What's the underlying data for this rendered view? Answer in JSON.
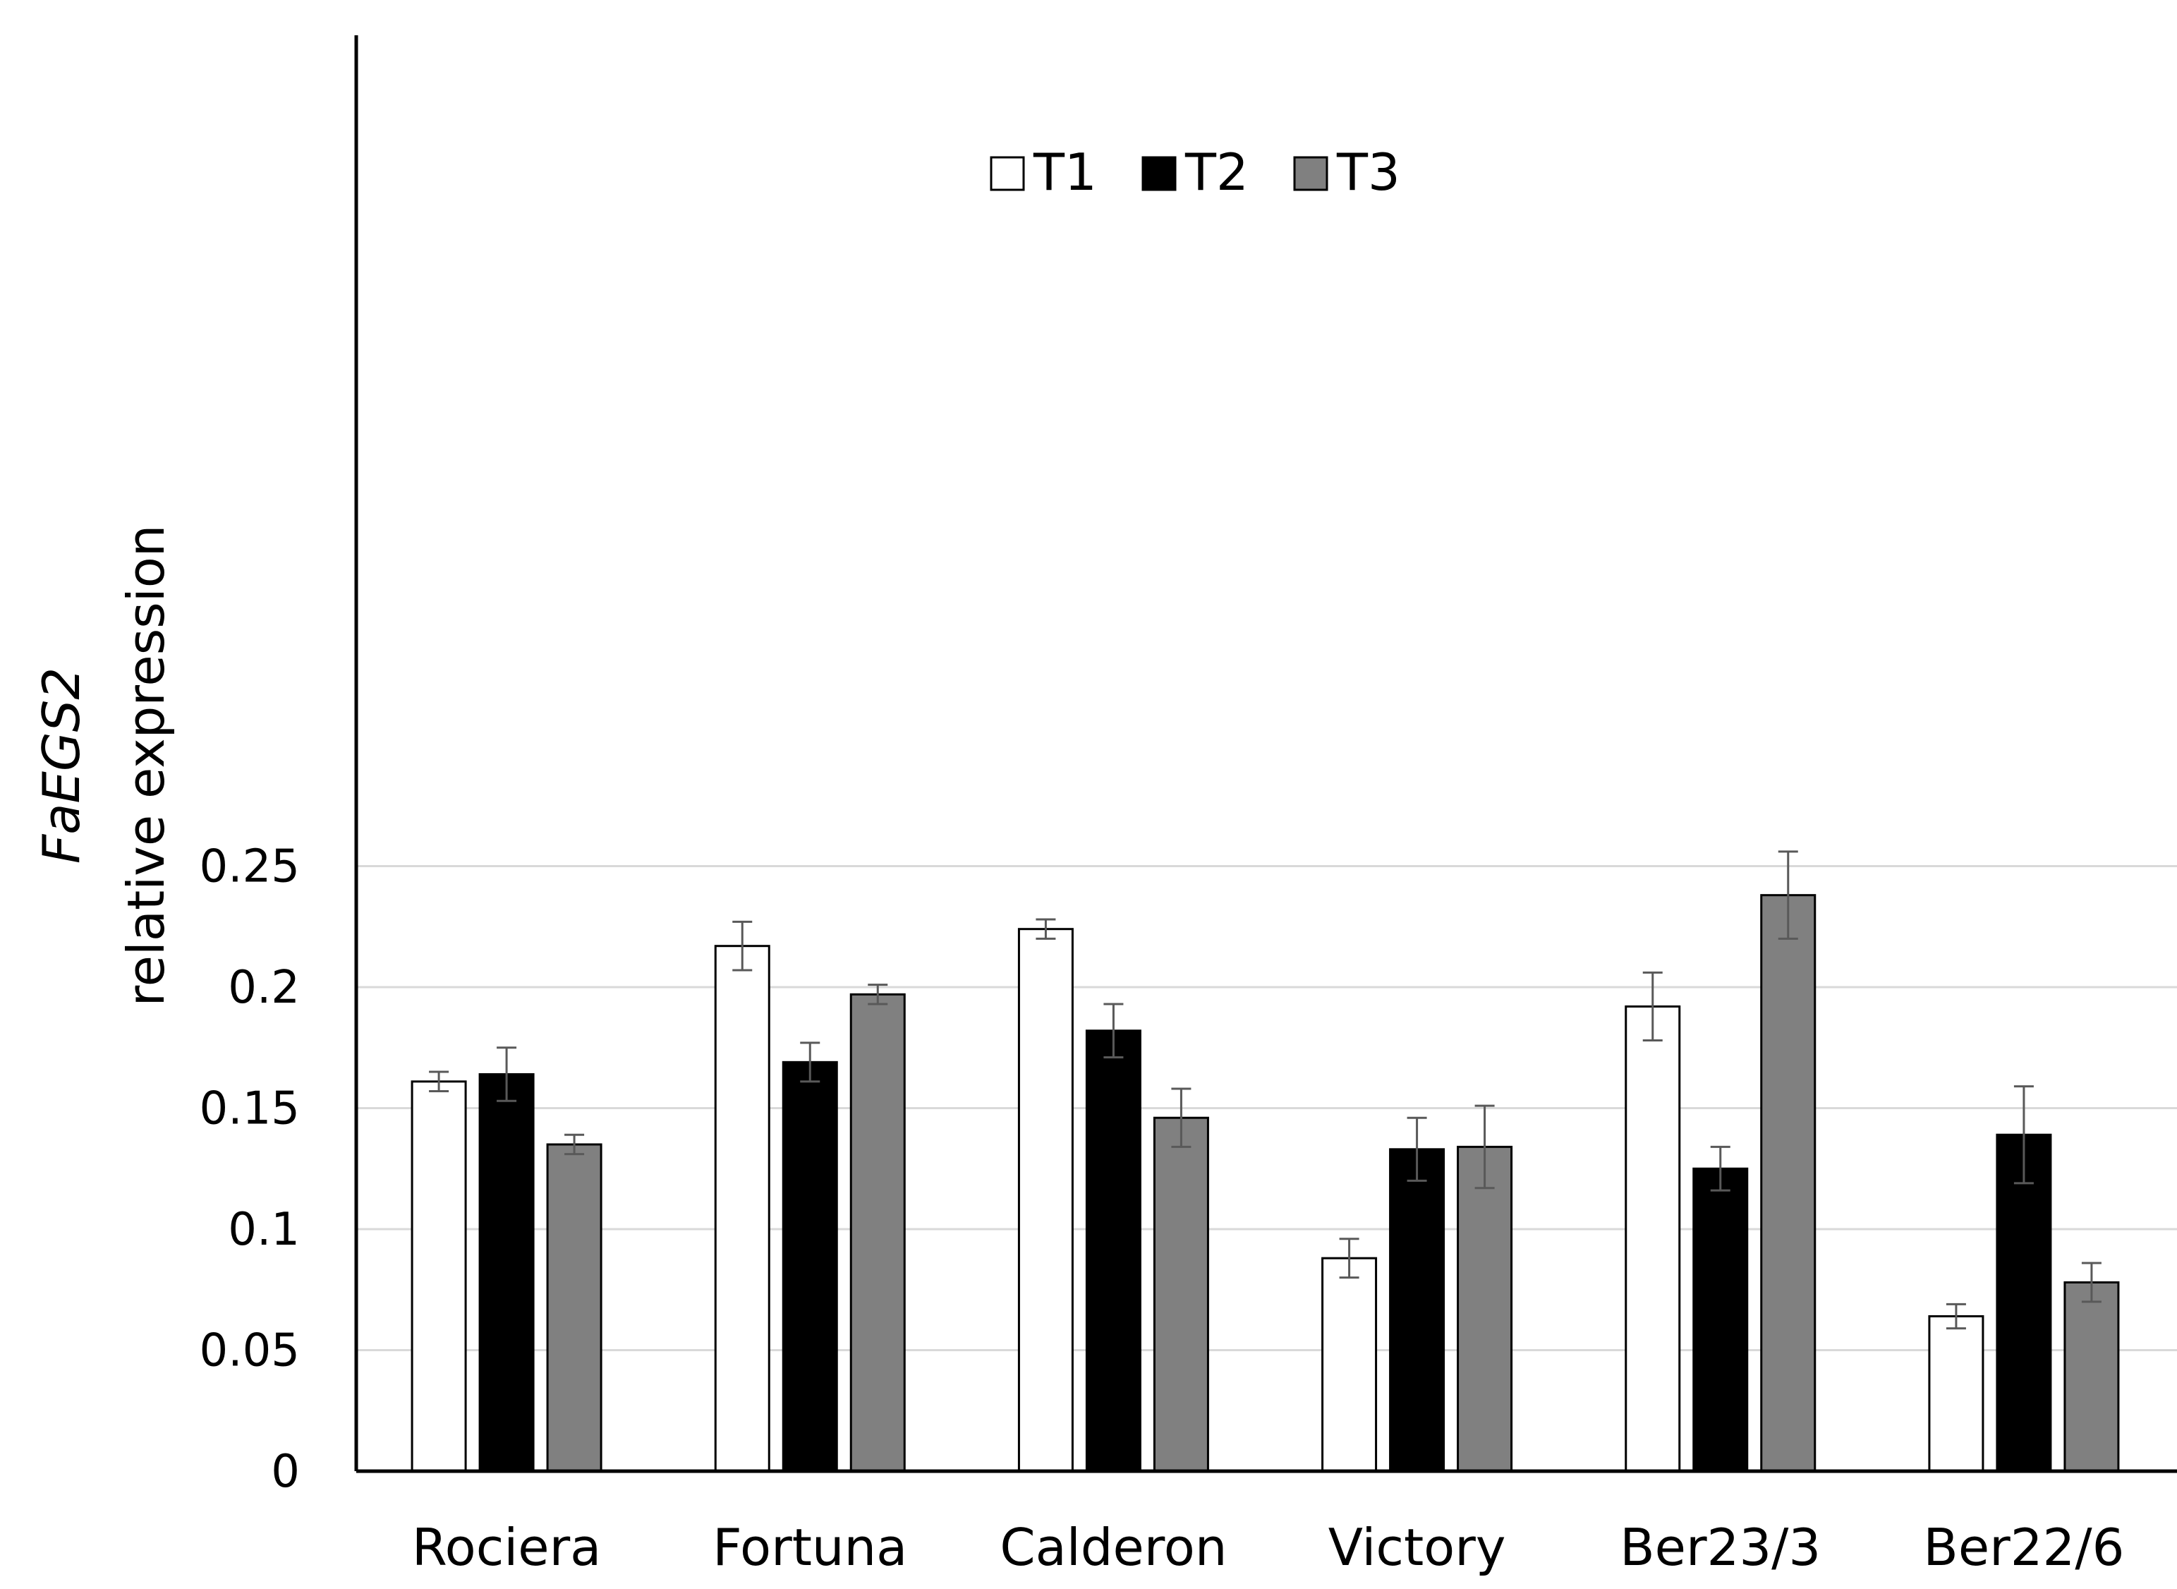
{
  "chart_data": {
    "type": "bar",
    "title": "",
    "xlabel": "",
    "ylabel_gene": "FaEGS2",
    "ylabel_text": "relative expression",
    "categories": [
      "Rociera",
      "Fortuna",
      "Calderon",
      "Victory",
      "Ber23/3",
      "Ber22/6"
    ],
    "series": [
      {
        "name": "T1",
        "color": "#ffffff",
        "values": [
          0.161,
          0.217,
          0.224,
          0.088,
          0.192,
          0.064
        ],
        "errors": [
          0.004,
          0.01,
          0.004,
          0.008,
          0.014,
          0.005
        ]
      },
      {
        "name": "T2",
        "color": "#000000",
        "values": [
          0.164,
          0.169,
          0.182,
          0.133,
          0.125,
          0.139
        ],
        "errors": [
          0.011,
          0.008,
          0.011,
          0.013,
          0.009,
          0.02
        ]
      },
      {
        "name": "T3",
        "color": "#808080",
        "values": [
          0.135,
          0.197,
          0.146,
          0.134,
          0.238,
          0.078
        ],
        "errors": [
          0.004,
          0.004,
          0.012,
          0.017,
          0.018,
          0.008
        ]
      }
    ],
    "ylim": [
      0,
      0.3
    ],
    "yticks": [
      0,
      0.05,
      0.1,
      0.15,
      0.2,
      0.25
    ],
    "ytick_labels": [
      "0",
      "0.05",
      "0.1",
      "0.15",
      "0.2",
      "0.25"
    ],
    "grid": true,
    "legend_position": "top-center"
  }
}
